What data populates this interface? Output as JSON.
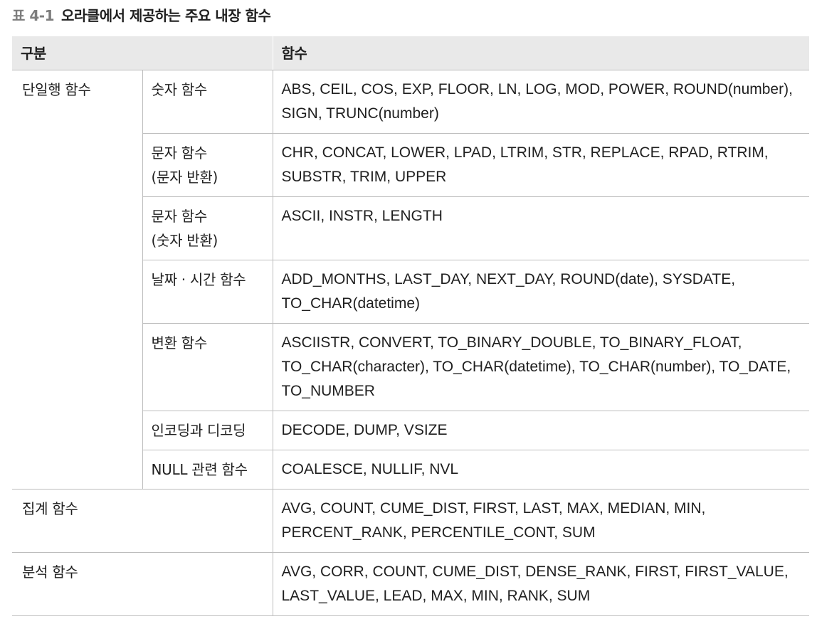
{
  "caption": {
    "label": "표 4-1",
    "title": "오라클에서 제공하는 주요 내장 함수"
  },
  "table": {
    "headers": [
      "구분",
      "함수"
    ],
    "single_row_group": "단일행 함수",
    "rows": [
      {
        "sub": [
          "숫자 함수"
        ],
        "funcs": "ABS, CEIL, COS, EXP, FLOOR, LN, LOG, MOD, POWER, ROUND(number), SIGN, TRUNC(number)"
      },
      {
        "sub": [
          "문자 함수",
          "(문자 반환)"
        ],
        "funcs": "CHR, CONCAT, LOWER, LPAD, LTRIM, STR, REPLACE, RPAD, RTRIM, SUBSTR, TRIM, UPPER"
      },
      {
        "sub": [
          "문자 함수",
          "(숫자 반환)"
        ],
        "funcs": "ASCII, INSTR, LENGTH"
      },
      {
        "sub": [
          "날짜 · 시간 함수"
        ],
        "funcs": "ADD_MONTHS, LAST_DAY, NEXT_DAY, ROUND(date), SYSDATE, TO_CHAR(datetime)"
      },
      {
        "sub": [
          "변환 함수"
        ],
        "funcs": "ASCIISTR, CONVERT, TO_BINARY_DOUBLE, TO_BINARY_FLOAT, TO_CHAR(character), TO_CHAR(datetime), TO_CHAR(number), TO_DATE, TO_NUMBER"
      },
      {
        "sub": [
          "인코딩과 디코딩"
        ],
        "funcs": "DECODE, DUMP, VSIZE"
      },
      {
        "sub": [
          "NULL 관련 함수"
        ],
        "funcs": "COALESCE, NULLIF, NVL"
      }
    ],
    "aggregate": {
      "category": "집계 함수",
      "funcs": "AVG, COUNT, CUME_DIST, FIRST, LAST,  MAX, MEDIAN, MIN, PERCENT_RANK, PERCENTILE_CONT, SUM"
    },
    "analytic": {
      "category": "분석 함수",
      "funcs": "AVG, CORR, COUNT, CUME_DIST, DENSE_RANK, FIRST, FIRST_VALUE,  LAST_VALUE, LEAD, MAX, MIN, RANK, SUM"
    }
  }
}
